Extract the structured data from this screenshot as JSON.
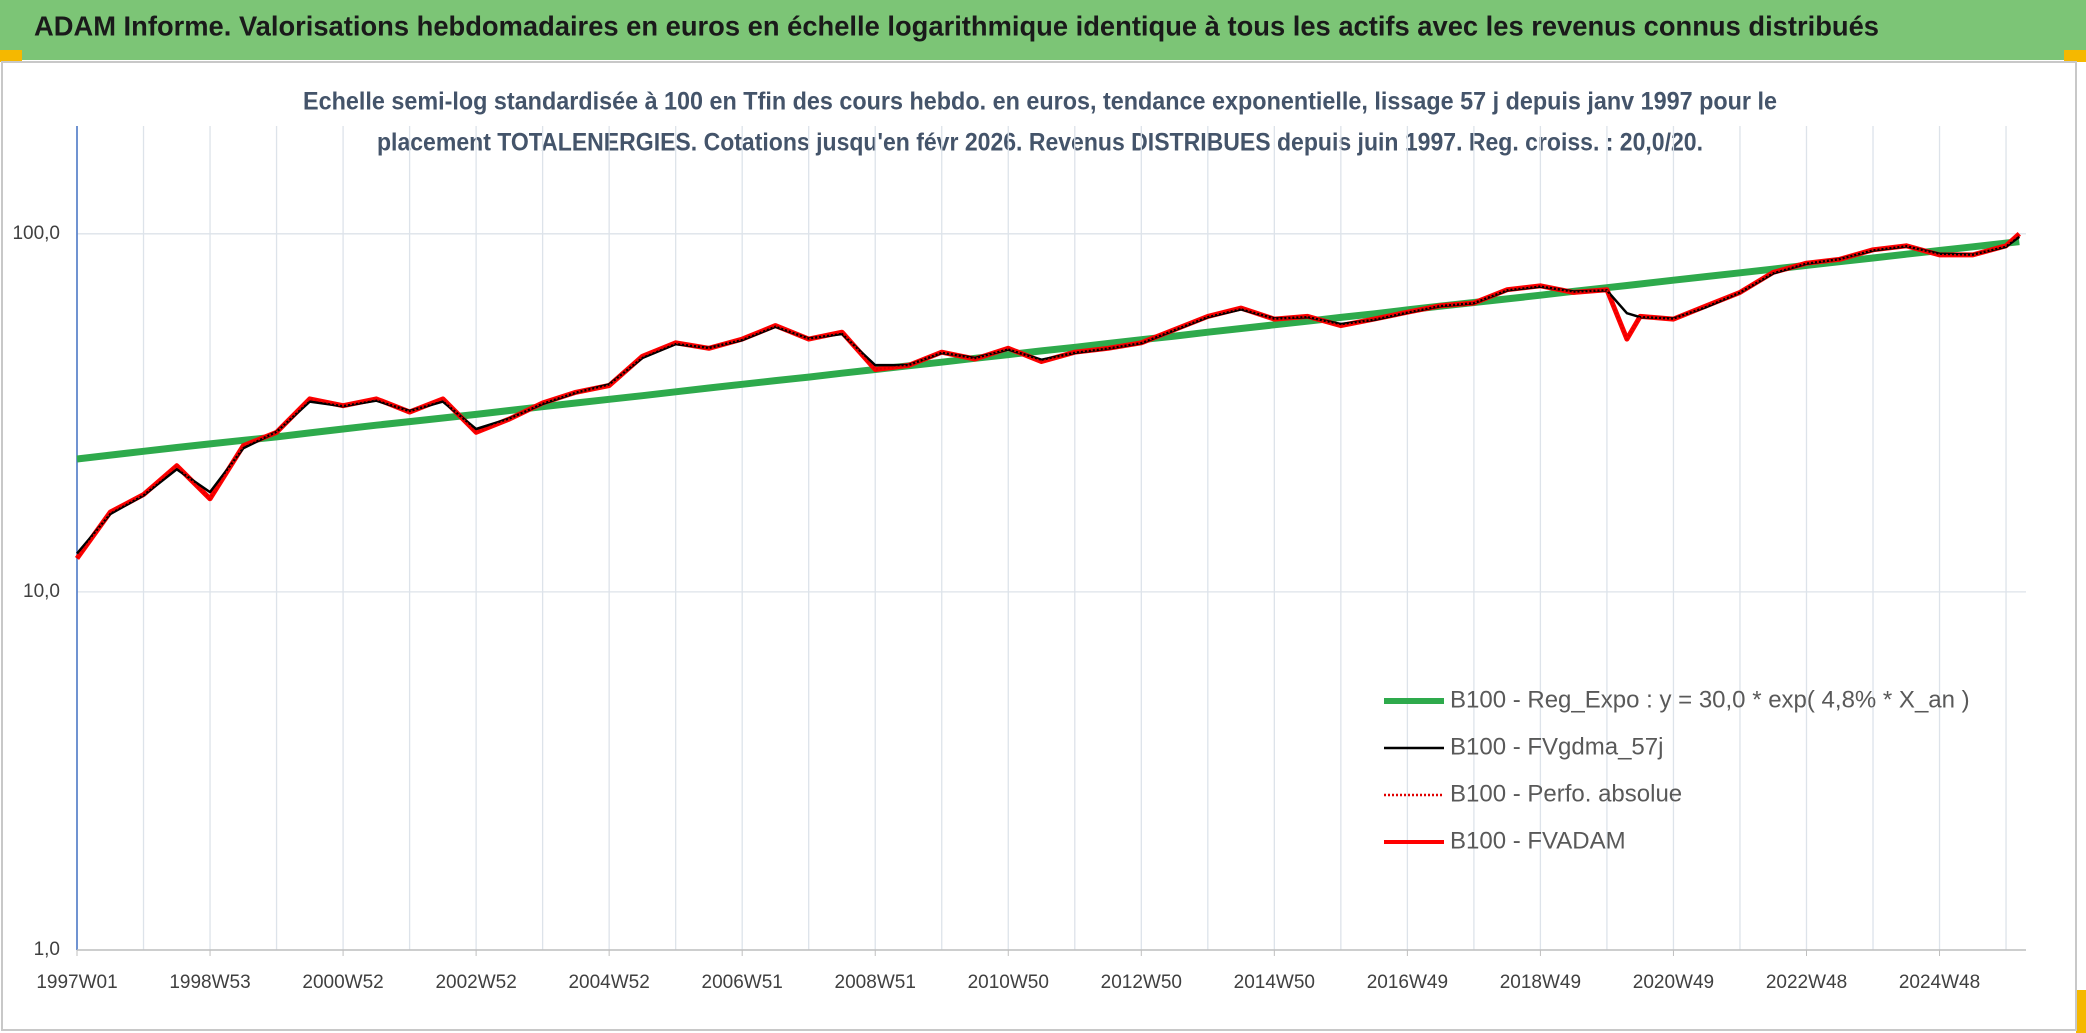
{
  "header": {
    "title": "ADAM Informe. Valorisations hebdomadaires en euros en échelle logarithmique identique à tous les actifs avec les revenus connus distribués"
  },
  "chart_data": {
    "type": "line",
    "subtitle": [
      "Echelle semi-log standardisée à 100 en Tfin des cours hebdo. en euros, tendance exponentielle, lissage 57 j depuis janv 1997 pour le",
      "placement TOTALENERGIES. Cotations jusqu'en févr 2026. Revenus DISTRIBUES depuis juin 1997. Reg. croiss. : 20,0/20."
    ],
    "log_y": true,
    "grid": true,
    "legend": "lower right",
    "ylim": [
      1,
      200
    ],
    "yticks": [
      {
        "value": 1,
        "label": "1,0"
      },
      {
        "value": 10,
        "label": "10,0"
      },
      {
        "value": 100,
        "label": "100,0"
      }
    ],
    "xlim": [
      1997,
      2026.3
    ],
    "xticks": [
      {
        "value": 1997,
        "label": "1997W01"
      },
      {
        "value": 1999,
        "label": "1998W53"
      },
      {
        "value": 2001,
        "label": "2000W52"
      },
      {
        "value": 2003,
        "label": "2002W52"
      },
      {
        "value": 2005,
        "label": "2004W52"
      },
      {
        "value": 2007,
        "label": "2006W51"
      },
      {
        "value": 2009,
        "label": "2008W51"
      },
      {
        "value": 2011,
        "label": "2010W50"
      },
      {
        "value": 2013,
        "label": "2012W50"
      },
      {
        "value": 2015,
        "label": "2014W50"
      },
      {
        "value": 2017,
        "label": "2016W49"
      },
      {
        "value": 2019,
        "label": "2018W49"
      },
      {
        "value": 2021,
        "label": "2020W49"
      },
      {
        "value": 2023,
        "label": "2022W48"
      },
      {
        "value": 2025,
        "label": "2024W48"
      }
    ],
    "x": [
      1997,
      1997.5,
      1998,
      1998.5,
      1999,
      1999.5,
      2000,
      2000.5,
      2001,
      2001.5,
      2002,
      2002.5,
      2003,
      2003.5,
      2004,
      2004.5,
      2005,
      2005.5,
      2006,
      2006.5,
      2007,
      2007.5,
      2008,
      2008.5,
      2009,
      2009.5,
      2010,
      2010.5,
      2011,
      2011.5,
      2012,
      2012.5,
      2013,
      2013.5,
      2014,
      2014.5,
      2015,
      2015.5,
      2016,
      2016.5,
      2017,
      2017.5,
      2018,
      2018.5,
      2019,
      2019.5,
      2020,
      2020.3,
      2020.5,
      2021,
      2021.5,
      2022,
      2022.5,
      2023,
      2023.5,
      2024,
      2024.5,
      2025,
      2025.5,
      2026,
      2026.2
    ],
    "series": [
      {
        "name": "B100 - Reg_Expo : y = 30,0 * exp( 4,8% *  X_an )",
        "color": "#2eaa4c",
        "values": [
          23.5,
          24.1,
          24.7,
          25.3,
          25.9,
          26.5,
          27.1,
          27.8,
          28.5,
          29.2,
          29.9,
          30.6,
          31.3,
          32.1,
          32.9,
          33.7,
          34.5,
          35.3,
          36.2,
          37.1,
          38.0,
          38.9,
          39.8,
          40.8,
          41.8,
          42.8,
          43.8,
          44.9,
          46.0,
          47.1,
          48.2,
          49.4,
          50.6,
          51.8,
          53.1,
          54.4,
          55.7,
          57.0,
          58.4,
          59.8,
          61.3,
          62.8,
          64.3,
          65.8,
          67.4,
          69.1,
          70.7,
          71.7,
          72.4,
          74.2,
          76.0,
          77.8,
          79.7,
          81.6,
          83.6,
          85.6,
          87.7,
          89.8,
          92.0,
          94.2,
          95.1
        ]
      },
      {
        "name": "B100 - FVgdma_57j",
        "color": "#000000",
        "values": [
          12.8,
          16.5,
          18.6,
          22.0,
          19.0,
          25.2,
          28.0,
          34.0,
          33.0,
          34.2,
          32.0,
          34.0,
          28.5,
          30.5,
          33.5,
          36.0,
          38.0,
          45.0,
          49.2,
          48.0,
          50.5,
          55.0,
          51.0,
          52.5,
          43.0,
          43.0,
          46.5,
          45.0,
          47.5,
          44.5,
          46.5,
          47.8,
          49.5,
          53.8,
          58.5,
          61.5,
          58.0,
          58.5,
          56.0,
          57.5,
          60.2,
          62.8,
          64.0,
          69.5,
          71.2,
          69.0,
          69.5,
          60.0,
          58.5,
          58.0,
          62.5,
          68.5,
          77.5,
          82.5,
          85.0,
          89.8,
          92.3,
          88.0,
          87.5,
          92.0,
          98.0
        ]
      },
      {
        "name": "B100 - Perfo. absolue",
        "color": "#e00000",
        "dash": "dotted",
        "values": [
          12.4,
          16.7,
          18.7,
          22.5,
          18.2,
          25.6,
          27.9,
          34.6,
          33.1,
          34.6,
          31.8,
          34.6,
          27.9,
          30.4,
          33.7,
          36.1,
          37.7,
          45.5,
          49.6,
          47.9,
          50.8,
          55.4,
          50.8,
          53.1,
          41.8,
          42.9,
          46.7,
          44.7,
          47.9,
          44.0,
          46.7,
          47.9,
          49.6,
          54.0,
          58.8,
          62.0,
          57.8,
          58.8,
          55.4,
          57.8,
          60.4,
          63.0,
          64.1,
          69.8,
          71.6,
          68.6,
          69.8,
          50.8,
          58.8,
          57.8,
          63.0,
          68.6,
          78.0,
          82.8,
          84.9,
          90.2,
          92.6,
          87.3,
          87.3,
          92.6,
          100.0
        ]
      },
      {
        "name": "B100 - FVADAM",
        "color": "#ff0000",
        "values": [
          12.4,
          16.7,
          18.7,
          22.5,
          18.2,
          25.6,
          27.9,
          34.6,
          33.1,
          34.6,
          31.8,
          34.6,
          27.9,
          30.4,
          33.7,
          36.1,
          37.7,
          45.5,
          49.6,
          47.9,
          50.8,
          55.4,
          50.8,
          53.1,
          41.8,
          42.9,
          46.7,
          44.7,
          47.9,
          44.0,
          46.7,
          47.9,
          49.6,
          54.0,
          58.8,
          62.0,
          57.8,
          58.8,
          55.4,
          57.8,
          60.4,
          63.0,
          64.1,
          69.8,
          71.6,
          68.6,
          69.8,
          50.8,
          58.8,
          57.8,
          63.0,
          68.6,
          78.0,
          82.8,
          84.9,
          90.2,
          92.6,
          87.3,
          87.3,
          92.6,
          100.0
        ]
      }
    ]
  }
}
